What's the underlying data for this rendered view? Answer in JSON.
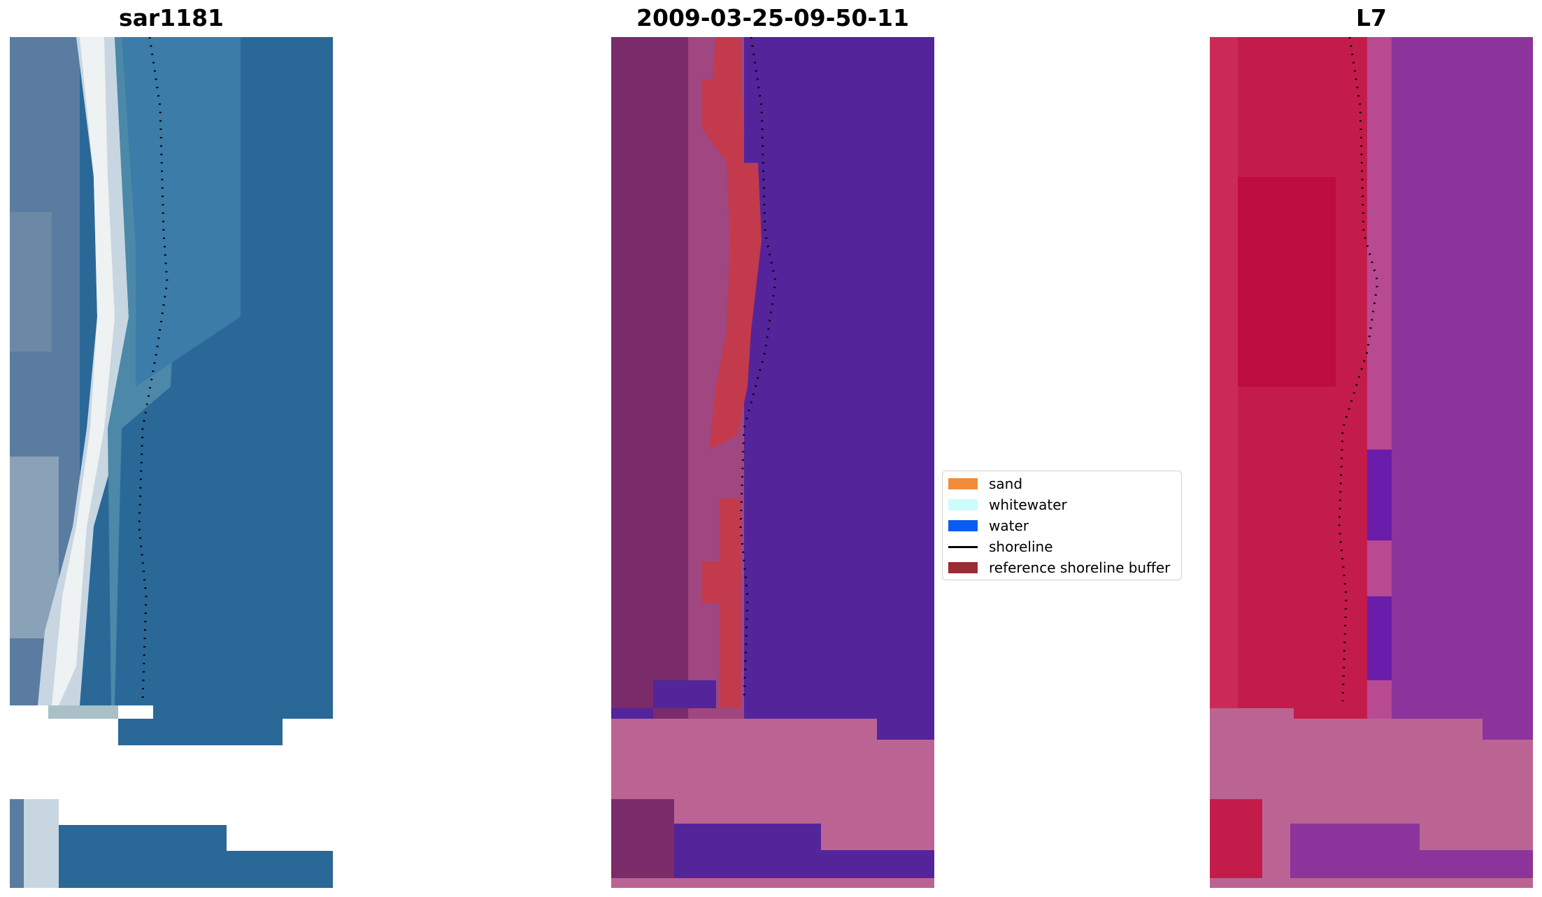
{
  "panels": {
    "rgb_title": "sar1181",
    "classified_title": "2009-03-25-09-50-11",
    "mndwi_title": "L7"
  },
  "legend": {
    "items": [
      {
        "label": "sand",
        "color": "#f28b3c"
      },
      {
        "label": "whitewater",
        "color": "#cdfcfc"
      },
      {
        "label": "water",
        "color": "#0a5cf0"
      },
      {
        "label": "shoreline",
        "color": "#000000"
      },
      {
        "label": "reference shoreline buffer",
        "color": "#9b2b35"
      }
    ]
  },
  "colors": {
    "rgb_land": "#5a7ca0",
    "rgb_sand": "#e8eef0",
    "rgb_water": "#2a6898",
    "classified_land": "#7a2c6a",
    "classified_buffer": "#c23a4c",
    "classified_water": "#54249a",
    "classified_nodata": "#bb6494",
    "l7_land": "#c41c4a",
    "l7_water": "#8c349c",
    "l7_nodata": "#bb6494"
  }
}
